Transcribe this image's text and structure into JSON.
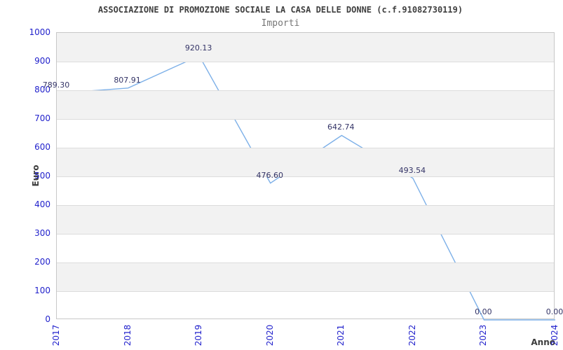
{
  "chart_data": {
    "type": "line",
    "title": "ASSOCIAZIONE DI PROMOZIONE SOCIALE LA CASA DELLE DONNE (c.f.91082730119)",
    "subtitle": "Importi",
    "xlabel": "Anno",
    "ylabel": "Euro",
    "categories": [
      "2017",
      "2018",
      "2019",
      "2020",
      "2021",
      "2022",
      "2023",
      "2024"
    ],
    "values": [
      789.3,
      807.91,
      920.13,
      476.6,
      642.74,
      493.54,
      0.0,
      0.0
    ],
    "value_labels": [
      "789.30",
      "807.91",
      "920.13",
      "476.60",
      "642.74",
      "493.54",
      "0.00",
      "0.00"
    ],
    "yticks": [
      "0",
      "100",
      "200",
      "300",
      "400",
      "500",
      "600",
      "700",
      "800",
      "900",
      "1000"
    ],
    "ylim": [
      0,
      1000
    ],
    "ytick_step": 100,
    "grid": "alternating-horizontal-bands",
    "legend": "none",
    "colors": {
      "line": "#7db0e8",
      "tick_label": "#2222cc",
      "data_label": "#333366",
      "band_gray": "#f2f2f2",
      "gridline": "#dcdcdc",
      "axis_border": "#c8c8c8",
      "title": "#3f3f3f",
      "subtitle": "#767676",
      "axis_title": "#3c3c3c"
    }
  }
}
